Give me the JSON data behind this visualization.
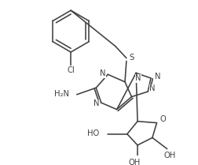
{
  "bg_color": "#ffffff",
  "line_color": "#404040",
  "line_width": 1.15,
  "font_size": 7.2,
  "figsize": [
    2.52,
    2.09
  ],
  "dpi": 100,
  "xlim": [
    0,
    252
  ],
  "ylim": [
    0,
    209
  ]
}
